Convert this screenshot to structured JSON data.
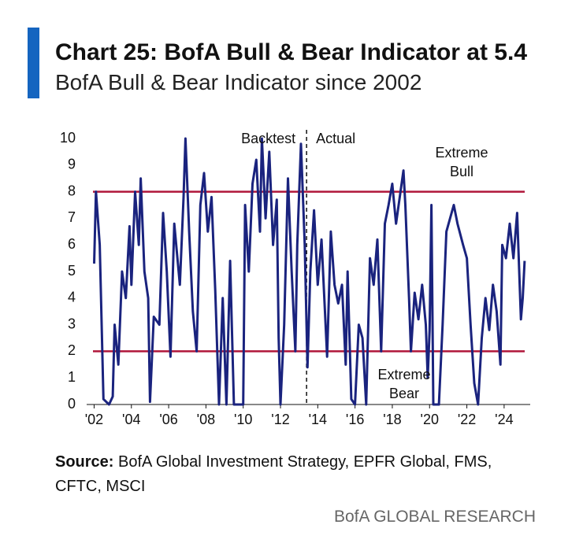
{
  "chart_data": {
    "type": "line",
    "title": "Chart 25: BofA Bull & Bear Indicator at 5.4",
    "subtitle": "BofA Bull & Bear Indicator since 2002",
    "x": [
      2002.0,
      2002.1,
      2002.3,
      2002.5,
      2002.8,
      2003.0,
      2003.1,
      2003.3,
      2003.5,
      2003.7,
      2003.9,
      2004.0,
      2004.2,
      2004.4,
      2004.5,
      2004.7,
      2004.9,
      2005.0,
      2005.2,
      2005.5,
      2005.7,
      2005.9,
      2006.1,
      2006.3,
      2006.6,
      2006.8,
      2006.9,
      2007.1,
      2007.3,
      2007.5,
      2007.7,
      2007.9,
      2008.1,
      2008.3,
      2008.5,
      2008.7,
      2008.9,
      2009.1,
      2009.3,
      2009.5,
      2010.0,
      2010.1,
      2010.3,
      2010.5,
      2010.7,
      2010.9,
      2011.0,
      2011.2,
      2011.4,
      2011.6,
      2011.8,
      2011.9,
      2012.0,
      2012.2,
      2012.4,
      2012.6,
      2012.8,
      2012.9,
      2013.1,
      2013.3,
      2013.45,
      2013.6,
      2013.8,
      2014.0,
      2014.2,
      2014.5,
      2014.7,
      2014.9,
      2015.1,
      2015.3,
      2015.5,
      2015.6,
      2015.8,
      2016.0,
      2016.2,
      2016.4,
      2016.6,
      2016.8,
      2017.0,
      2017.2,
      2017.4,
      2017.6,
      2017.8,
      2018.0,
      2018.2,
      2018.4,
      2018.6,
      2018.7,
      2018.9,
      2019.0,
      2019.2,
      2019.4,
      2019.6,
      2019.8,
      2019.9,
      2020.0,
      2020.1,
      2020.2,
      2020.5,
      2020.7,
      2020.9,
      2021.1,
      2021.3,
      2021.5,
      2021.8,
      2022.0,
      2022.2,
      2022.4,
      2022.6,
      2022.8,
      2023.0,
      2023.2,
      2023.4,
      2023.6,
      2023.8,
      2023.9,
      2024.1,
      2024.3,
      2024.5,
      2024.7,
      2024.9,
      2025.0,
      2025.1
    ],
    "values": [
      5.3,
      8.0,
      6,
      0.2,
      0,
      0.3,
      3,
      1.5,
      5,
      4,
      6.7,
      4.5,
      8.0,
      6,
      8.5,
      5,
      4,
      0.1,
      3.3,
      3.0,
      7.2,
      5,
      1.8,
      6.8,
      4.5,
      7.8,
      10,
      6.5,
      3.5,
      2,
      7.5,
      8.7,
      6.5,
      7.8,
      4.3,
      0,
      4,
      0,
      5.4,
      0,
      0,
      7.5,
      5,
      8.3,
      9.2,
      6.5,
      10,
      7,
      9.5,
      6,
      7.7,
      2.5,
      0,
      3,
      8.5,
      5,
      2,
      6,
      9.8,
      6,
      1.4,
      5,
      7.3,
      4.5,
      6.2,
      1.8,
      6.5,
      4.5,
      3.8,
      4.5,
      1.5,
      5,
      0.2,
      0,
      3,
      2.5,
      0,
      5.5,
      4.5,
      6.2,
      2,
      6.8,
      7.5,
      8.3,
      6.8,
      7.8,
      8.8,
      7.5,
      4,
      2,
      4.2,
      3.2,
      4.5,
      3,
      1,
      2.8,
      7.5,
      0,
      0,
      3,
      6.5,
      7,
      7.5,
      6.8,
      6,
      5.5,
      3,
      0.8,
      0,
      2.5,
      4,
      2.8,
      4.5,
      3.5,
      1.5,
      6,
      5.5,
      6.8,
      5.5,
      7.2,
      3.2,
      4,
      5.4
    ],
    "color": "#1a237e",
    "xlim": [
      2001.6,
      2025.4
    ],
    "xticks": [
      {
        "value": 2002,
        "label": "'02"
      },
      {
        "value": 2004,
        "label": "'04"
      },
      {
        "value": 2006,
        "label": "'06"
      },
      {
        "value": 2008,
        "label": "'08"
      },
      {
        "value": 2010,
        "label": "'10"
      },
      {
        "value": 2012,
        "label": "'12"
      },
      {
        "value": 2014,
        "label": "'14"
      },
      {
        "value": 2016,
        "label": "'16"
      },
      {
        "value": 2018,
        "label": "'18"
      },
      {
        "value": 2020,
        "label": "'20"
      },
      {
        "value": 2022,
        "label": "'22"
      },
      {
        "value": 2024,
        "label": "'24"
      }
    ],
    "ylim": [
      0,
      10
    ],
    "yticks": [
      0,
      1,
      2,
      3,
      4,
      5,
      6,
      7,
      8,
      9,
      10
    ],
    "hlines": [
      8,
      2
    ],
    "hline_color": "#b0163a",
    "divider_x": 2013.4,
    "annotations": [
      "Backtest",
      "Actual",
      "Extreme",
      "Bull",
      "Extreme",
      "Bear"
    ]
  },
  "source_label": "Source:",
  "source_text": "BofA Global Investment Strategy, EPFR Global, FMS,",
  "source_text_2": "CFTC, MSCI",
  "footer": "BofA GLOBAL RESEARCH"
}
